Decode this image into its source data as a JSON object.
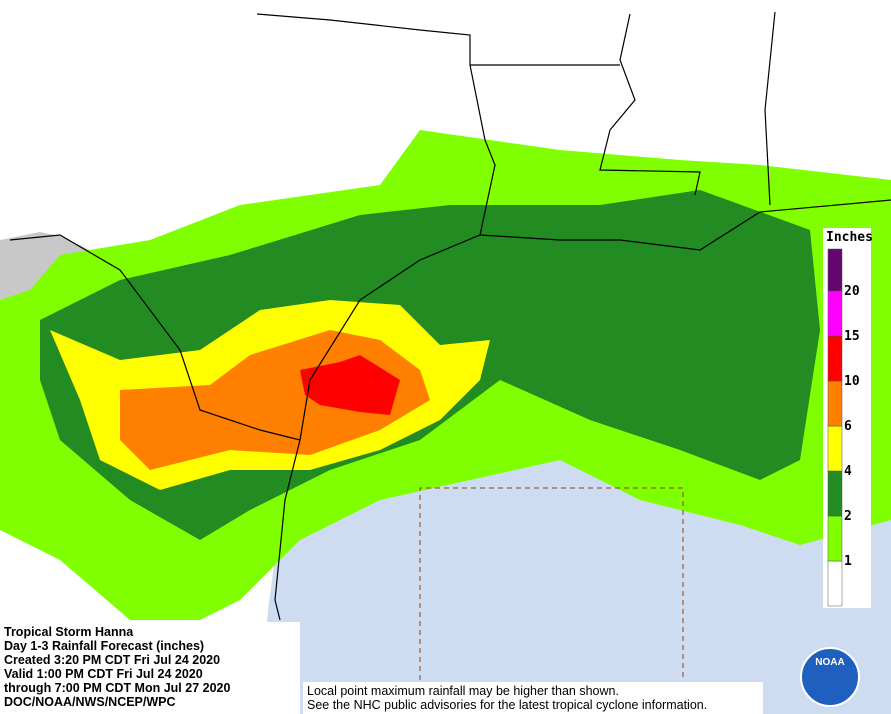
{
  "info": {
    "lines": [
      "Tropical Storm Hanna",
      "Day 1-3 Rainfall Forecast (inches)",
      "Created 3:20 PM CDT Fri Jul 24 2020",
      "Valid 1:00 PM CDT Fri Jul 24 2020",
      "through 7:00 PM CDT Mon Jul 27 2020",
      "DOC/NOAA/NWS/NCEP/WPC"
    ]
  },
  "note": {
    "lines": [
      "Local point maximum rainfall may be higher than shown.",
      "See the NHC public advisories for the latest tropical cyclone information."
    ]
  },
  "legend": {
    "title": "Inches",
    "labels": [
      1,
      2,
      4,
      6,
      10,
      15,
      20
    ],
    "colors": [
      "#ffffff",
      "#7fff00",
      "#228b22",
      "#ffff00",
      "#ff7f00",
      "#ff0000",
      "#ff00ff",
      "#66056f"
    ]
  },
  "logo": {
    "text": "NOAA"
  }
}
